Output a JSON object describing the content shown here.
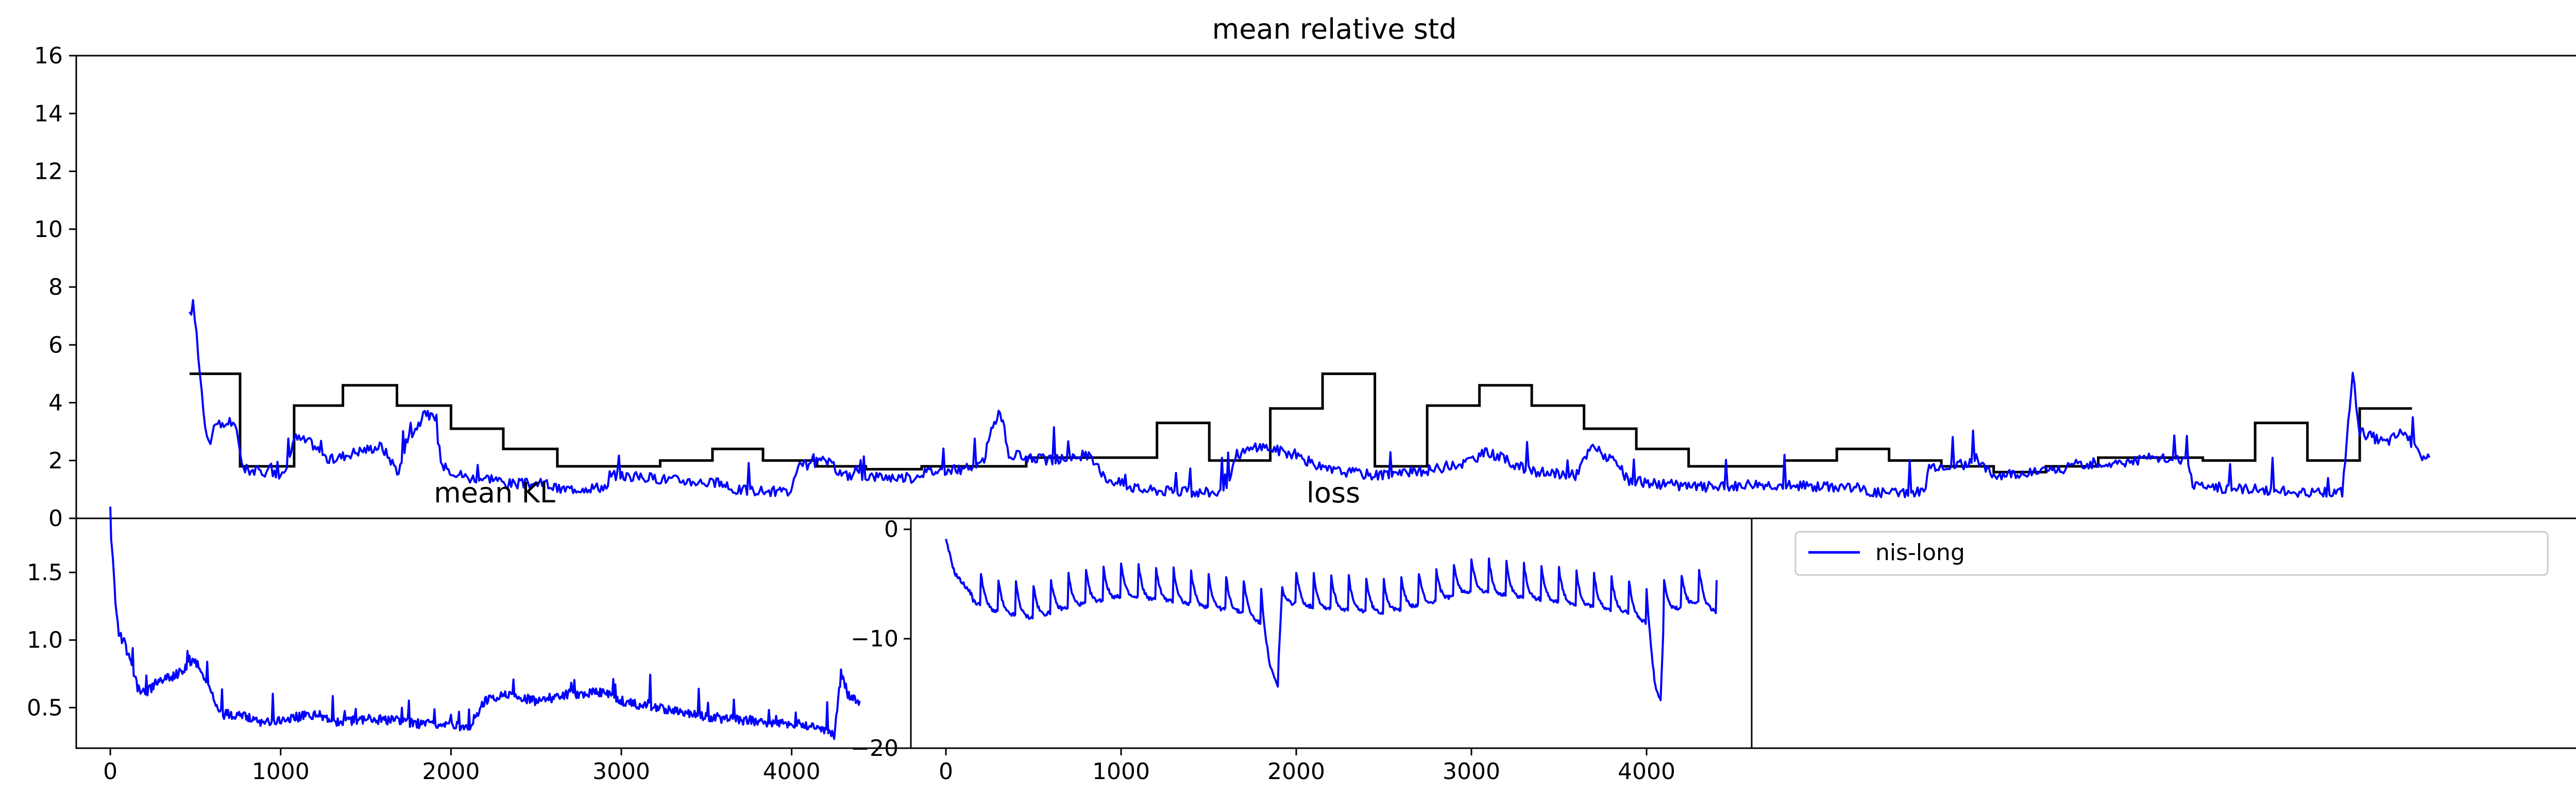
{
  "chart_data": [
    {
      "id": "top",
      "type": "line",
      "title": "mean relative std",
      "xlim": [
        -200,
        14200
      ],
      "ylim": [
        0,
        16
      ],
      "yticks": [
        0,
        2,
        4,
        6,
        8,
        10,
        12,
        14,
        16
      ],
      "grid": false,
      "series": [
        {
          "name": "nis-long",
          "color": "#0000ff",
          "style": "noisy",
          "points": [
            [
              450,
              7.0
            ],
            [
              470,
              7.4
            ],
            [
              490,
              6.4
            ],
            [
              510,
              5.0
            ],
            [
              540,
              3.2
            ],
            [
              570,
              2.6
            ],
            [
              600,
              3.4
            ],
            [
              630,
              3.1
            ],
            [
              680,
              3.4
            ],
            [
              720,
              3.0
            ],
            [
              760,
              1.7
            ],
            [
              900,
              1.6
            ],
            [
              1000,
              1.5
            ],
            [
              1050,
              2.8
            ],
            [
              1150,
              2.6
            ],
            [
              1250,
              2.0
            ],
            [
              1400,
              2.3
            ],
            [
              1550,
              2.5
            ],
            [
              1650,
              1.6
            ],
            [
              1700,
              2.7
            ],
            [
              1800,
              3.6
            ],
            [
              1850,
              3.5
            ],
            [
              1900,
              1.8
            ],
            [
              2050,
              1.4
            ],
            [
              2200,
              1.4
            ],
            [
              2260,
              1.2
            ],
            [
              2500,
              1.2
            ],
            [
              2560,
              1.0
            ],
            [
              2850,
              1.1
            ],
            [
              2860,
              1.5
            ],
            [
              3100,
              1.4
            ],
            [
              3500,
              1.2
            ],
            [
              3550,
              1.0
            ],
            [
              3900,
              0.9
            ],
            [
              3950,
              1.8
            ],
            [
              4100,
              2.0
            ],
            [
              4200,
              1.5
            ],
            [
              4600,
              1.4
            ],
            [
              4650,
              1.6
            ],
            [
              4900,
              1.7
            ],
            [
              5000,
              1.9
            ],
            [
              5050,
              3.0
            ],
            [
              5100,
              3.8
            ],
            [
              5150,
              2.2
            ],
            [
              5400,
              2.0
            ],
            [
              5600,
              2.2
            ],
            [
              5700,
              1.4
            ],
            [
              5900,
              1.0
            ],
            [
              6200,
              0.9
            ],
            [
              6400,
              0.9
            ],
            [
              6450,
              2.2
            ],
            [
              6600,
              2.5
            ],
            [
              6800,
              2.2
            ],
            [
              6950,
              1.7
            ],
            [
              7250,
              1.5
            ],
            [
              7500,
              1.6
            ],
            [
              7750,
              1.9
            ],
            [
              7900,
              2.3
            ],
            [
              8150,
              1.6
            ],
            [
              8400,
              1.5
            ],
            [
              8500,
              2.5
            ],
            [
              8650,
              1.8
            ],
            [
              8700,
              1.3
            ],
            [
              9050,
              1.1
            ],
            [
              9300,
              1.1
            ],
            [
              9400,
              1.2
            ],
            [
              9800,
              1.1
            ],
            [
              10000,
              1.1
            ],
            [
              10100,
              0.9
            ],
            [
              10400,
              0.9
            ],
            [
              10430,
              1.8
            ],
            [
              10700,
              1.9
            ],
            [
              10800,
              1.5
            ],
            [
              11200,
              1.7
            ],
            [
              11300,
              1.9
            ],
            [
              11500,
              1.9
            ],
            [
              11700,
              2.1
            ],
            [
              11900,
              2.0
            ],
            [
              11950,
              1.1
            ],
            [
              12300,
              1.0
            ],
            [
              12600,
              0.9
            ],
            [
              12800,
              0.9
            ],
            [
              12860,
              5.0
            ],
            [
              12900,
              3.0
            ],
            [
              13050,
              2.6
            ],
            [
              13150,
              3.0
            ],
            [
              13250,
              2.2
            ],
            [
              13300,
              2.1
            ]
          ]
        },
        {
          "name": "step",
          "color": "#000000",
          "style": "step",
          "segments": [
            [
              450,
              740,
              5.0
            ],
            [
              740,
              1050,
              1.8
            ],
            [
              1050,
              1330,
              3.9
            ],
            [
              1330,
              1640,
              4.6
            ],
            [
              1640,
              1950,
              3.9
            ],
            [
              1950,
              2250,
              3.1
            ],
            [
              2250,
              2560,
              2.4
            ],
            [
              2560,
              2840,
              1.8
            ],
            [
              2840,
              3150,
              1.8
            ],
            [
              3150,
              3450,
              2.0
            ],
            [
              3450,
              3740,
              2.4
            ],
            [
              3740,
              4050,
              2.0
            ],
            [
              4050,
              4330,
              1.8
            ],
            [
              4330,
              4650,
              1.7
            ],
            [
              4650,
              5250,
              1.8
            ],
            [
              5250,
              5550,
              2.1
            ],
            [
              5550,
              6000,
              2.1
            ],
            [
              6000,
              6300,
              3.3
            ],
            [
              6300,
              6650,
              2.0
            ],
            [
              6650,
              6950,
              3.8
            ],
            [
              6950,
              7250,
              5.0
            ],
            [
              7250,
              7550,
              1.8
            ],
            [
              7550,
              7850,
              3.9
            ],
            [
              7850,
              8150,
              4.6
            ],
            [
              8150,
              8450,
              3.9
            ],
            [
              8450,
              8750,
              3.1
            ],
            [
              8750,
              9050,
              2.4
            ],
            [
              9050,
              9600,
              1.8
            ],
            [
              9600,
              9900,
              2.0
            ],
            [
              9900,
              10200,
              2.4
            ],
            [
              10200,
              10500,
              2.0
            ],
            [
              10500,
              10800,
              1.8
            ],
            [
              10800,
              11100,
              1.6
            ],
            [
              11100,
              11400,
              1.8
            ],
            [
              11400,
              11700,
              2.1
            ],
            [
              11700,
              12000,
              2.1
            ],
            [
              12000,
              12300,
              2.0
            ],
            [
              12300,
              12600,
              3.3
            ],
            [
              12600,
              12900,
              2.0
            ],
            [
              12900,
              13200,
              3.8
            ]
          ]
        }
      ]
    },
    {
      "id": "bottom-left",
      "type": "line",
      "title": "mean KL",
      "xlim": [
        -200,
        4700
      ],
      "ylim": [
        0.2,
        1.9
      ],
      "xticks": [
        0,
        1000,
        2000,
        3000,
        4000
      ],
      "yticks": [
        0.5,
        1.0,
        1.5
      ],
      "ytick_labels": [
        "0.5",
        "1.0",
        "1.5"
      ],
      "grid": false,
      "series": [
        {
          "name": "nis-long",
          "color": "#0000ff",
          "style": "noisy",
          "points": [
            [
              0,
              1.85
            ],
            [
              15,
              1.6
            ],
            [
              30,
              1.3
            ],
            [
              50,
              1.05
            ],
            [
              80,
              0.98
            ],
            [
              120,
              0.85
            ],
            [
              160,
              0.65
            ],
            [
              200,
              0.6
            ],
            [
              300,
              0.7
            ],
            [
              400,
              0.75
            ],
            [
              500,
              0.85
            ],
            [
              550,
              0.72
            ],
            [
              600,
              0.6
            ],
            [
              650,
              0.45
            ],
            [
              750,
              0.45
            ],
            [
              900,
              0.38
            ],
            [
              1050,
              0.42
            ],
            [
              1200,
              0.45
            ],
            [
              1300,
              0.4
            ],
            [
              1400,
              0.4
            ],
            [
              1500,
              0.42
            ],
            [
              1700,
              0.4
            ],
            [
              1800,
              0.38
            ],
            [
              2000,
              0.38
            ],
            [
              2100,
              0.35
            ],
            [
              2200,
              0.55
            ],
            [
              2300,
              0.6
            ],
            [
              2500,
              0.55
            ],
            [
              2700,
              0.6
            ],
            [
              2900,
              0.62
            ],
            [
              3000,
              0.55
            ],
            [
              3200,
              0.5
            ],
            [
              3400,
              0.45
            ],
            [
              3600,
              0.42
            ],
            [
              3800,
              0.4
            ],
            [
              4000,
              0.38
            ],
            [
              4150,
              0.36
            ],
            [
              4250,
              0.3
            ],
            [
              4290,
              0.75
            ],
            [
              4330,
              0.6
            ],
            [
              4400,
              0.55
            ]
          ]
        }
      ]
    },
    {
      "id": "bottom-middle",
      "type": "line",
      "title": "loss",
      "xlim": [
        -200,
        4600
      ],
      "ylim": [
        -20,
        1
      ],
      "xticks": [
        0,
        1000,
        2000,
        3000,
        4000
      ],
      "yticks": [
        0,
        -10,
        -20
      ],
      "ytick_labels": [
        "0",
        "−10",
        "−20"
      ],
      "grid": false,
      "series": [
        {
          "name": "nis-long",
          "color": "#0000ff",
          "style": "sawtooth",
          "points": [
            [
              0,
              -1
            ],
            [
              50,
              -4
            ],
            [
              150,
              -6
            ],
            [
              300,
              -7
            ],
            [
              500,
              -7.5
            ],
            [
              700,
              -6.5
            ],
            [
              1000,
              -5.5
            ],
            [
              1300,
              -6
            ],
            [
              1700,
              -7
            ],
            [
              1800,
              -8
            ],
            [
              1850,
              -12
            ],
            [
              1900,
              -14
            ],
            [
              1920,
              -6
            ],
            [
              2100,
              -6.5
            ],
            [
              2500,
              -7
            ],
            [
              2800,
              -6
            ],
            [
              3000,
              -5
            ],
            [
              3500,
              -6
            ],
            [
              3900,
              -7
            ],
            [
              4000,
              -8
            ],
            [
              4050,
              -14
            ],
            [
              4080,
              -15
            ],
            [
              4100,
              -7
            ],
            [
              4300,
              -6
            ],
            [
              4400,
              -7
            ]
          ]
        }
      ]
    }
  ],
  "legend": {
    "entries": [
      {
        "label": "nis-long",
        "color": "#0000ff"
      }
    ]
  }
}
